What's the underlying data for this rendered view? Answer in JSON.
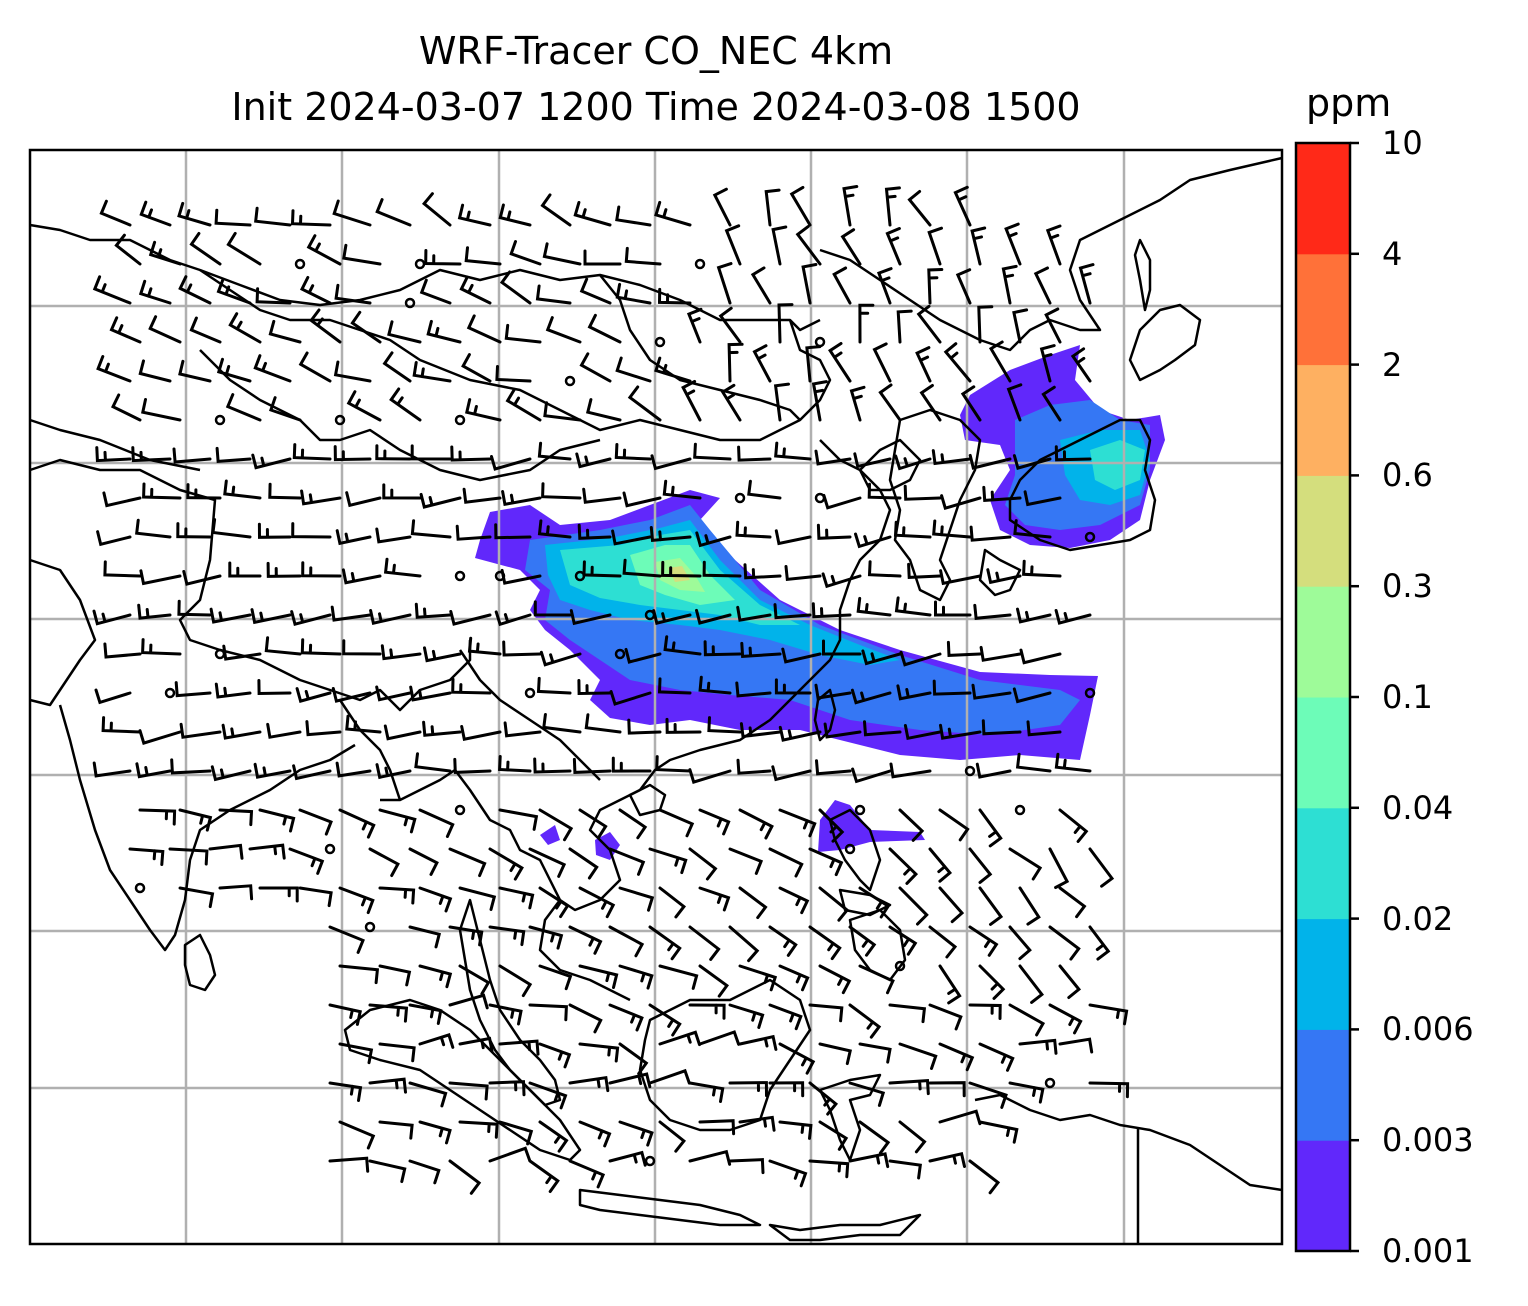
{
  "title": {
    "line1": "WRF-Tracer CO_NEC 4km",
    "line2": "Init 2024-03-07 1200 Time 2024-03-08 1500"
  },
  "colorbar": {
    "unit": "ppm",
    "levels": [
      "0.001",
      "0.003",
      "0.006",
      "0.02",
      "0.04",
      "0.1",
      "0.3",
      "0.6",
      "2",
      "4",
      "10"
    ],
    "colors": [
      "#6128fb",
      "#3577f4",
      "#01b3ea",
      "#2ddfd3",
      "#6dfcb8",
      "#9efb99",
      "#d4de7d",
      "#feb061",
      "#ff7139",
      "#ff2918"
    ]
  },
  "map": {
    "gridlines": true,
    "background": "#ffffff",
    "coastline_color": "#000000",
    "grid_color": "#b0b0b0"
  }
}
